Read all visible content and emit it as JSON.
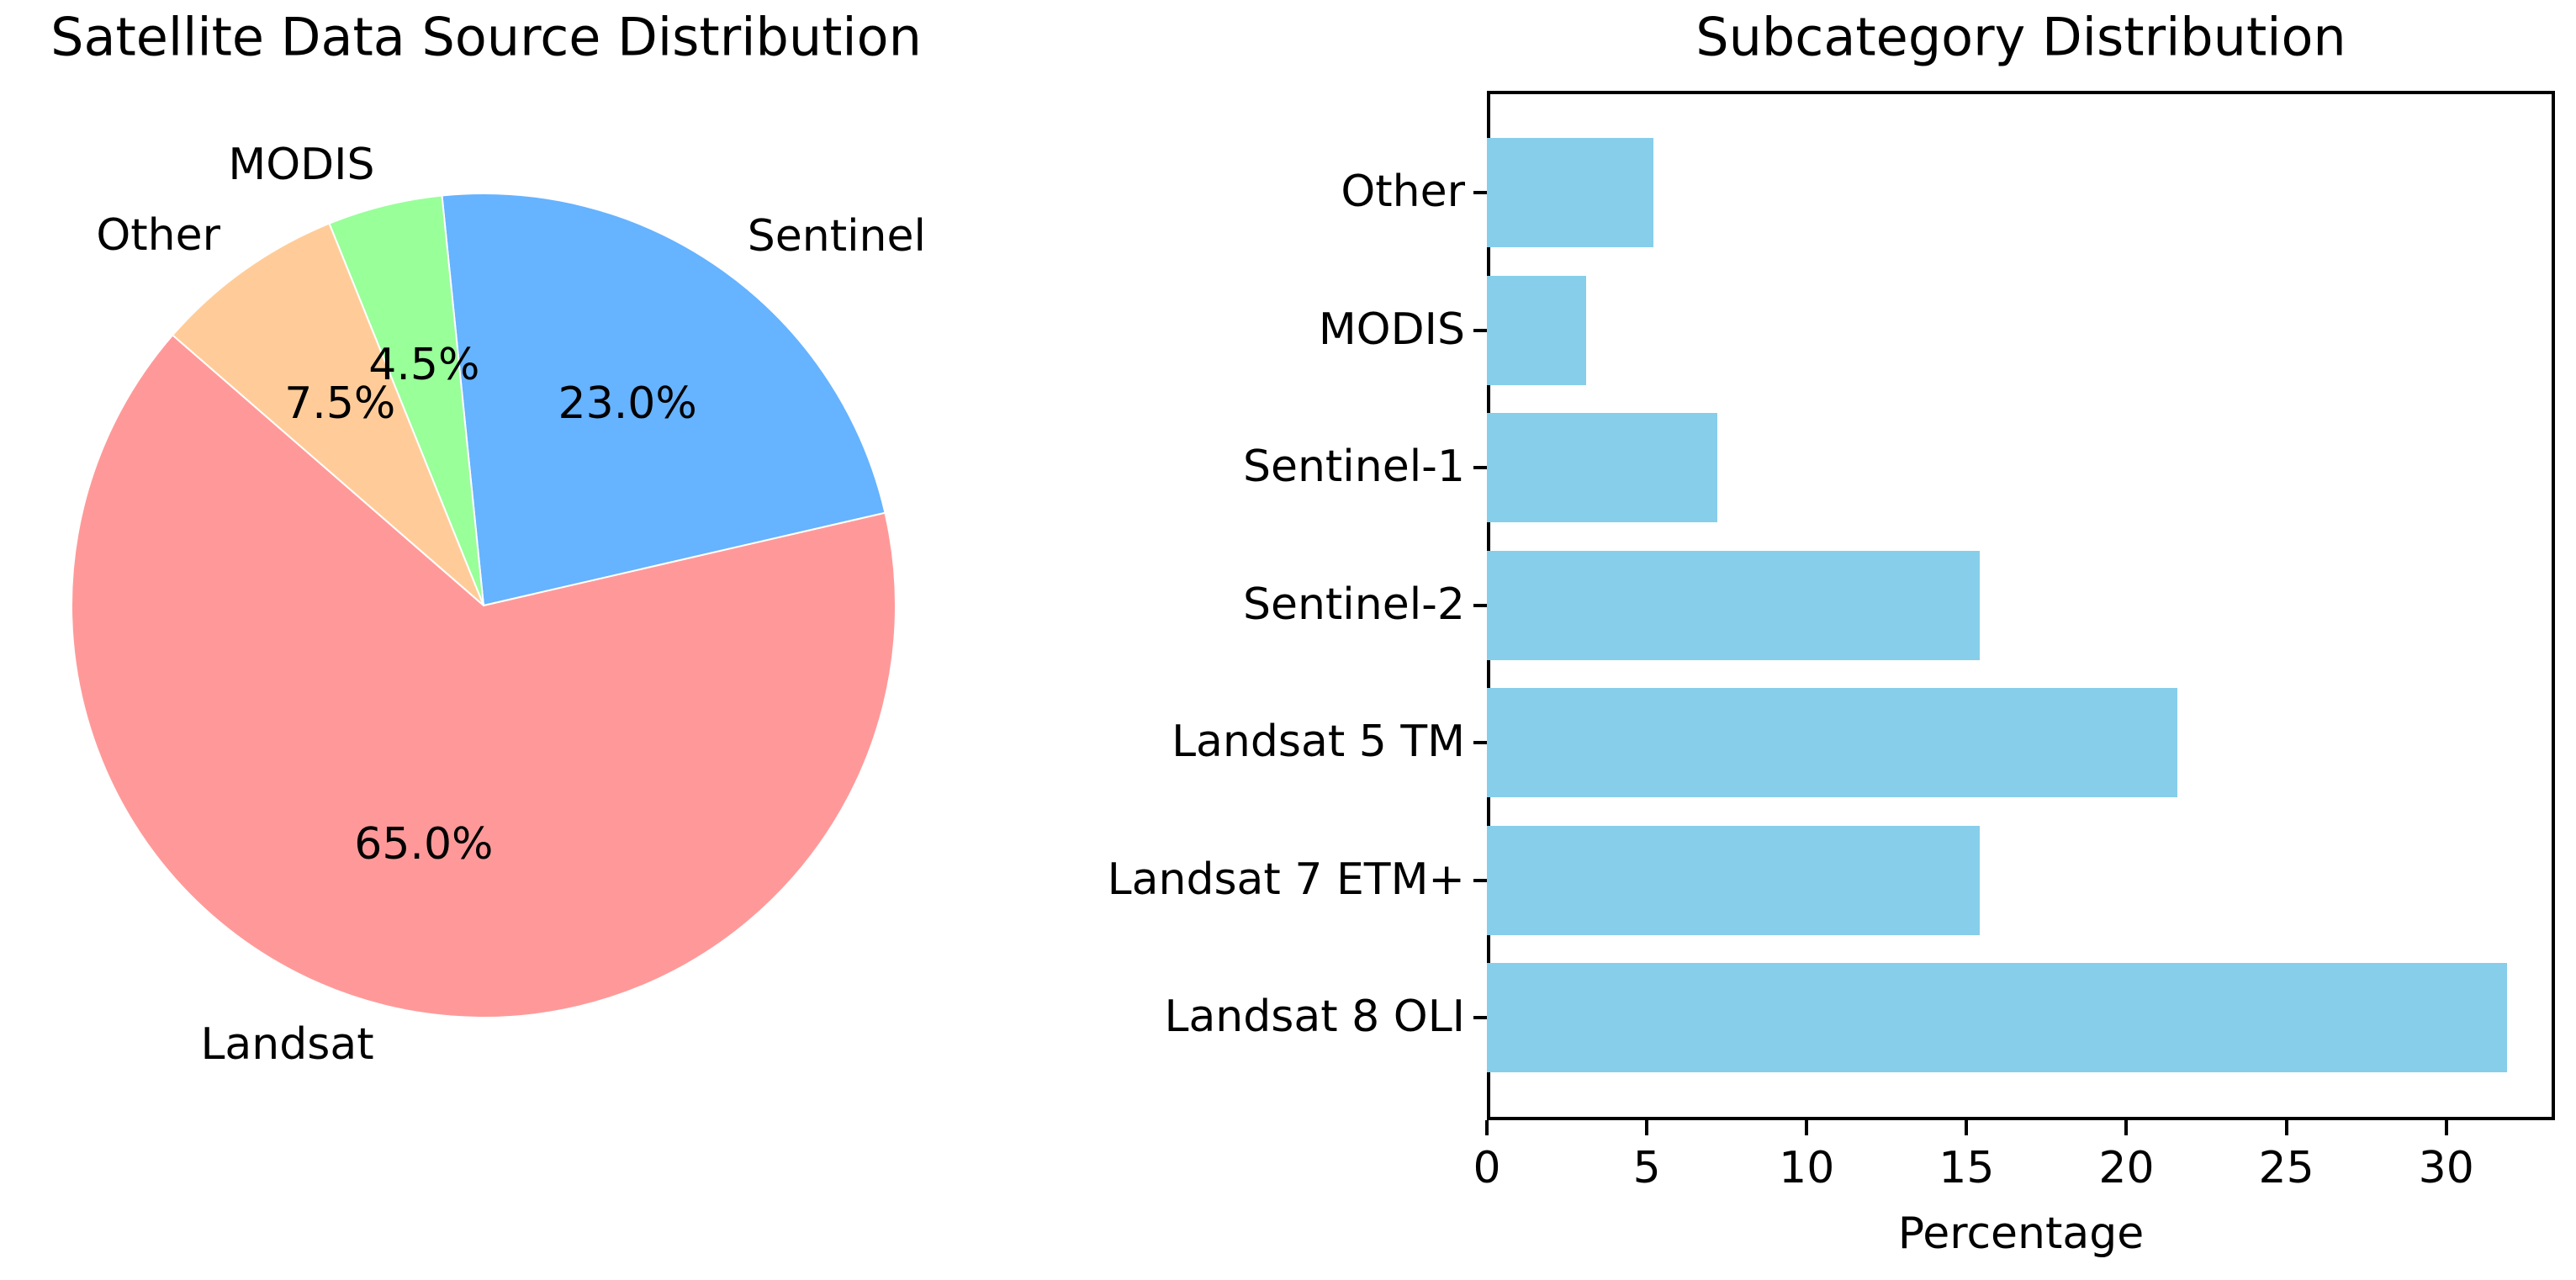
{
  "background_color": "#ffffff",
  "chart_data": [
    {
      "type": "pie",
      "title": "Satellite Data Source Distribution",
      "slices": [
        {
          "label": "Sentinel",
          "value": 23.0,
          "color": "#66b3ff"
        },
        {
          "label": "MODIS",
          "value": 4.5,
          "color": "#99ff99"
        },
        {
          "label": "Other",
          "value": 7.5,
          "color": "#ffcc99"
        },
        {
          "label": "Landsat",
          "value": 65.0,
          "color": "#ff9999"
        }
      ],
      "percent_labels": [
        "23.0%",
        "4.5%",
        "7.5%",
        "65.0%"
      ],
      "start_angle_deg": 13,
      "direction": "counterclockwise",
      "label_color": "#000000",
      "legend": "none"
    },
    {
      "type": "bar",
      "orientation": "horizontal",
      "title": "Subcategory Distribution",
      "categories_top_to_bottom": [
        "Other",
        "MODIS",
        "Sentinel-1",
        "Sentinel-2",
        "Landsat 5 TM",
        "Landsat 7 ETM+",
        "Landsat 8 OLI"
      ],
      "values": [
        5.2,
        3.1,
        7.2,
        15.4,
        21.6,
        15.4,
        31.9
      ],
      "bar_color": "#87ceeb",
      "xlabel": "Percentage",
      "ylabel": "",
      "x_ticks": [
        0,
        5,
        10,
        15,
        20,
        25,
        30
      ],
      "xlim": [
        0,
        33.4
      ],
      "grid": false,
      "frame_color": "#000000"
    }
  ]
}
